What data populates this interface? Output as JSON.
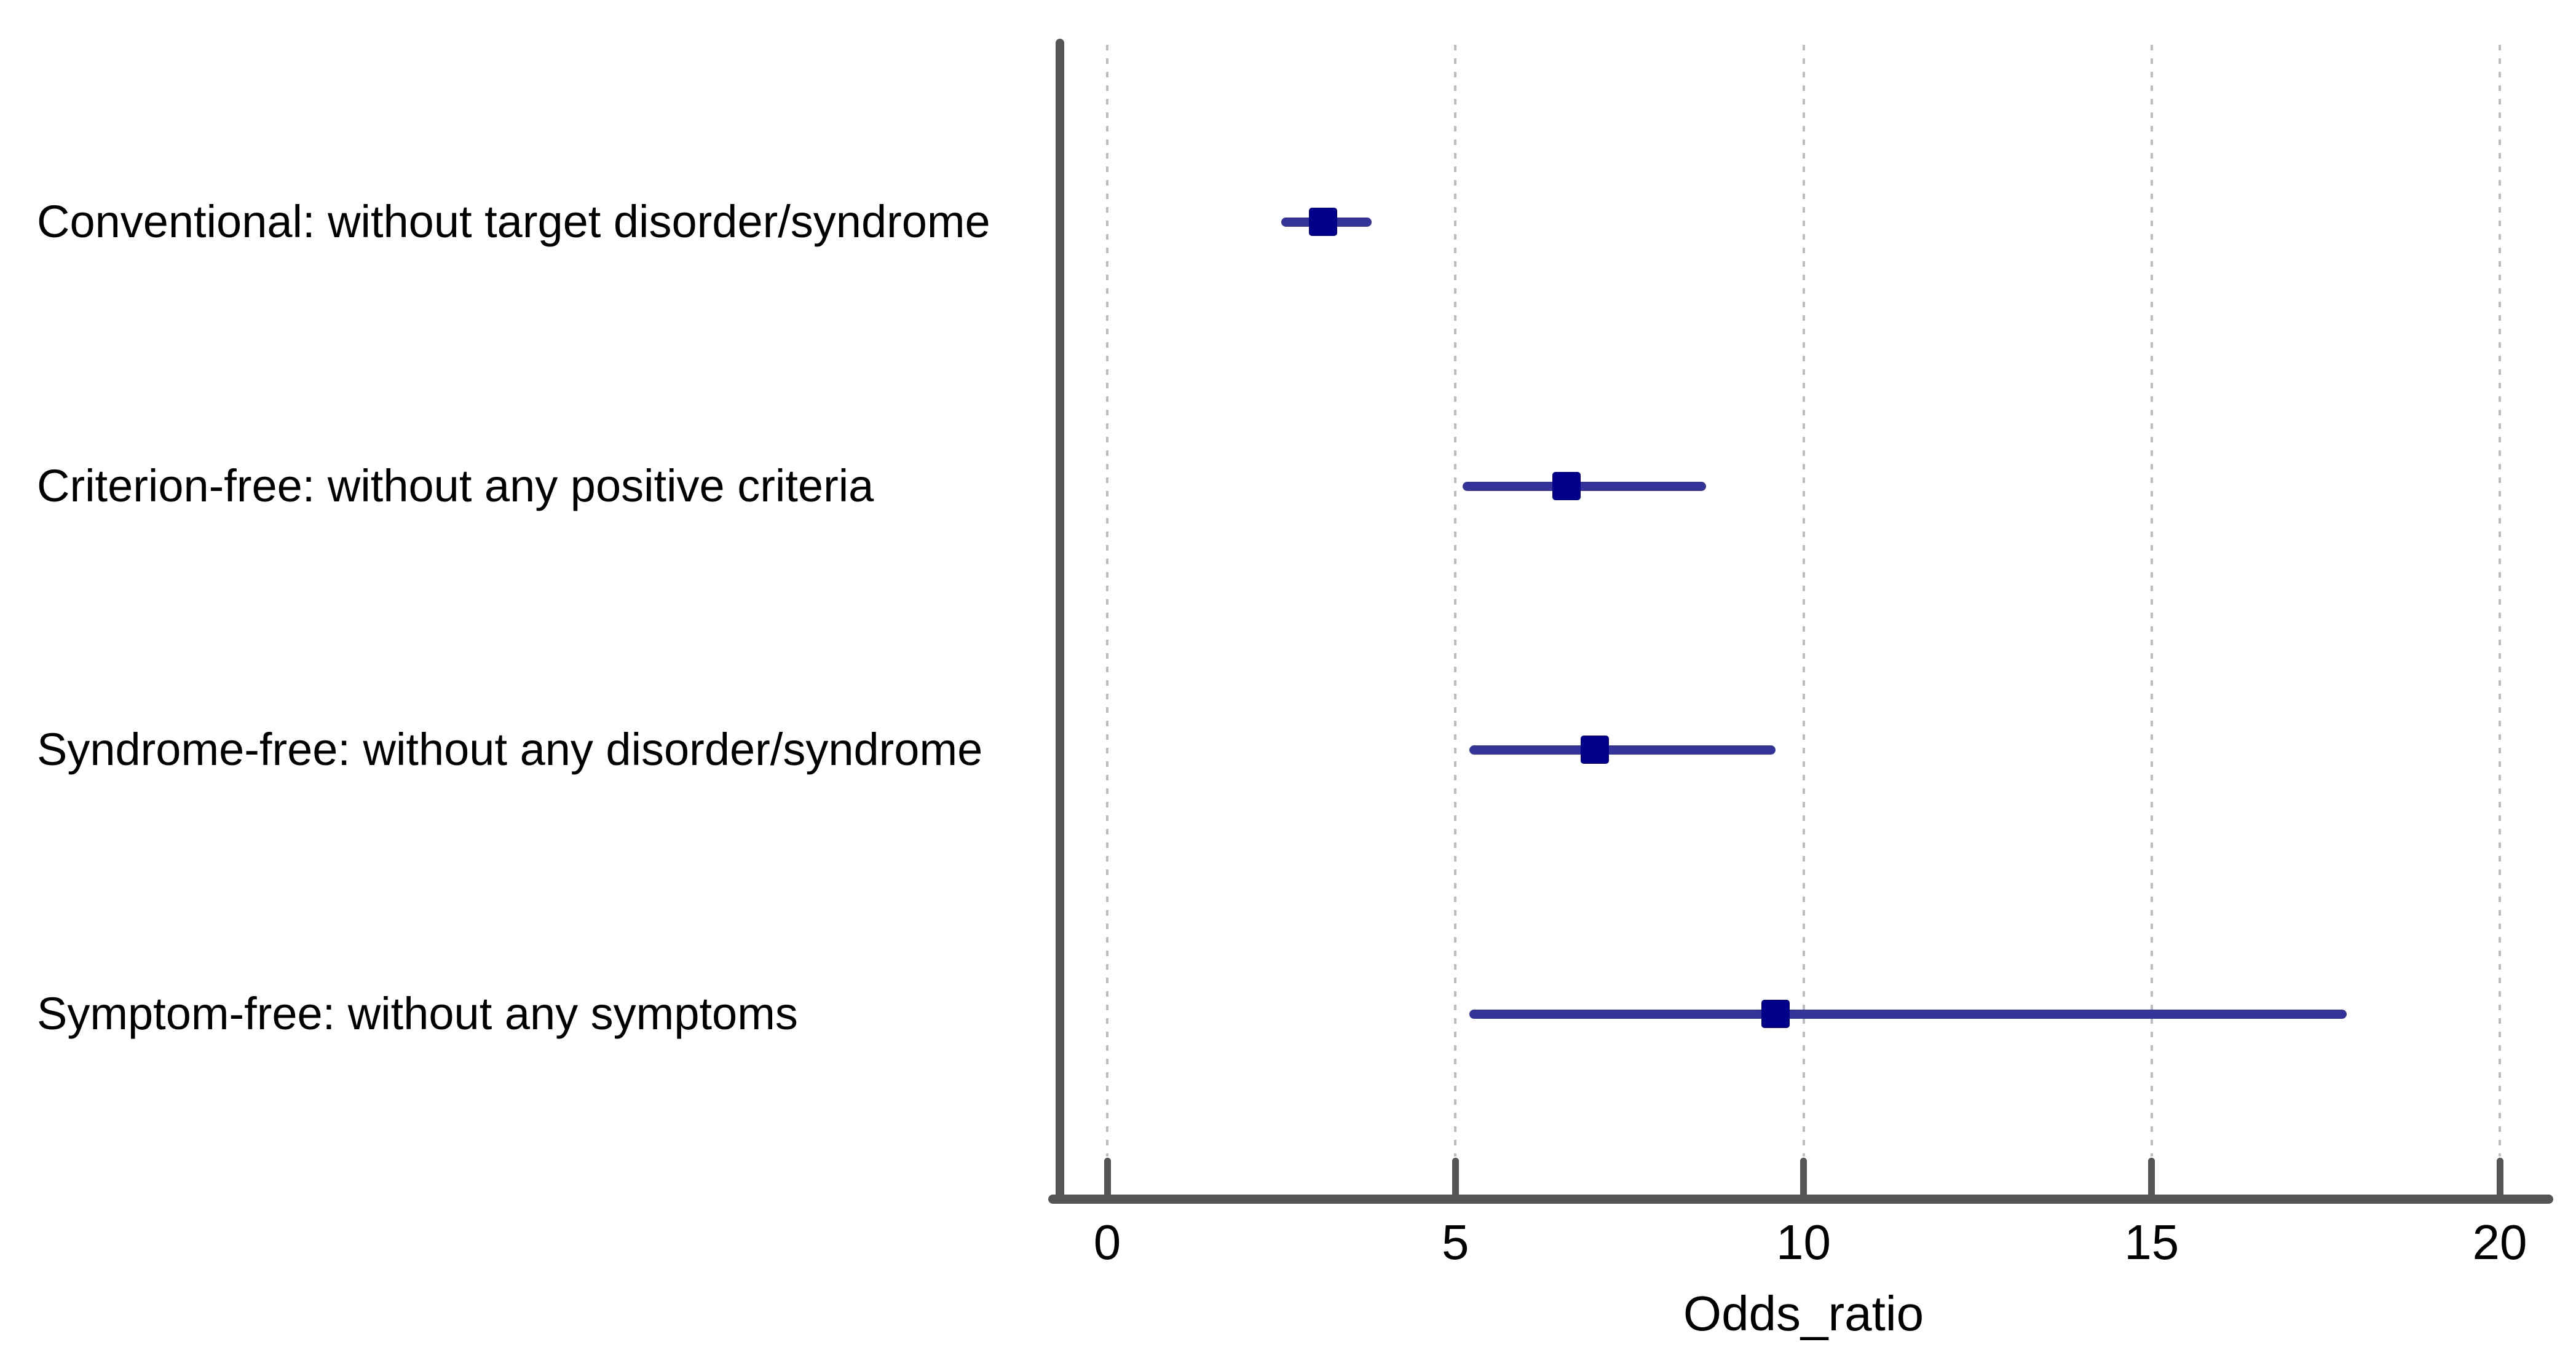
{
  "figure": {
    "background": "#ffffff"
  },
  "chart_data": {
    "type": "scatter",
    "subtype": "forest-plot",
    "title": "",
    "xlabel": "Odds_ratio",
    "ylabel": "",
    "xlim": [
      0,
      20
    ],
    "x_ticks": [
      "0",
      "5",
      "10",
      "15",
      "20"
    ],
    "x_tick_values": [
      0,
      5,
      10,
      15,
      20
    ],
    "grid": "vertical dashed gridlines at each x tick",
    "legend_position": "none",
    "rows": [
      {
        "label": "Conventional: without target disorder/syndrome",
        "odds_ratio": 3.1,
        "ci_low": 2.5,
        "ci_high": 3.8
      },
      {
        "label": "Criterion-free: without any positive criteria",
        "odds_ratio": 6.6,
        "ci_low": 5.1,
        "ci_high": 8.6
      },
      {
        "label": "Syndrome-free: without any disorder/syndrome",
        "odds_ratio": 7.0,
        "ci_low": 5.2,
        "ci_high": 9.6
      },
      {
        "label": "Symptom-free: without any symptoms",
        "odds_ratio": 9.6,
        "ci_low": 5.2,
        "ci_high": 17.8
      }
    ],
    "colors": {
      "marker": "#00008b",
      "ci_line": "#333399",
      "axis": "#555555",
      "gridline": "#bdbdbd",
      "text": "#000000"
    }
  }
}
